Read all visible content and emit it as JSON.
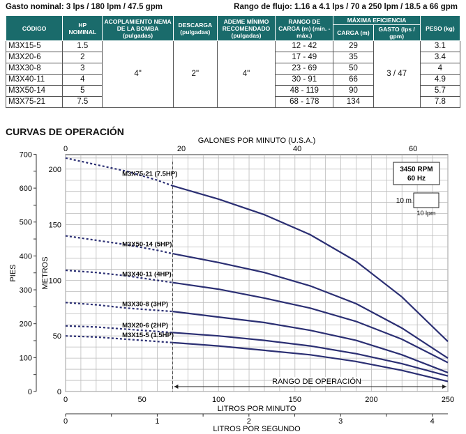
{
  "header": {
    "left": "Gasto nominal: 3 lps / 180 lpm / 47.5 gpm",
    "right": "Rango de flujo: 1.16 a 4.1 lps / 70 a 250 lpm / 18.5 a 66 gpm"
  },
  "table": {
    "headers": {
      "codigo": "CÓDIGO",
      "hp": "HP NOMINAL",
      "acoplamiento": "ACOPLAMIENTO NEMA DE LA BOMBA (pulgadas)",
      "descarga": "DESCARGA (pulgadas)",
      "ademe": "ADEME MÍNIMO RECOMENDADO (pulgadas)",
      "rango": "RANGO DE CARGA (m) (mín. - máx.)",
      "eficiencia": "MÁXIMA EFICIENCIA",
      "carga": "CARGA (m)",
      "gasto": "GASTO (lps / gpm)",
      "peso": "PESO (kg)"
    },
    "shared": {
      "acoplamiento": "4\"",
      "descarga": "2\"",
      "ademe": "4\"",
      "gasto": "3 / 47"
    },
    "rows": [
      {
        "code": "M3X15-5",
        "hp": "1.5",
        "rango": "12 - 42",
        "carga": "29",
        "peso": "3.1"
      },
      {
        "code": "M3X20-6",
        "hp": "2",
        "rango": "17 - 49",
        "carga": "35",
        "peso": "3.4"
      },
      {
        "code": "M3X30-8",
        "hp": "3",
        "rango": "23 - 69",
        "carga": "50",
        "peso": "4"
      },
      {
        "code": "M3X40-11",
        "hp": "4",
        "rango": "30 - 91",
        "carga": "66",
        "peso": "4.9"
      },
      {
        "code": "M3X50-14",
        "hp": "5",
        "rango": "48 - 119",
        "carga": "90",
        "peso": "5.7"
      },
      {
        "code": "M3X75-21",
        "hp": "7.5",
        "rango": "68 - 178",
        "carga": "134",
        "peso": "7.8"
      }
    ]
  },
  "section_title": "CURVAS DE OPERACIÓN",
  "chart_data": {
    "type": "line",
    "x_primary": {
      "label": "LITROS POR MINUTO",
      "range": [
        0,
        250
      ],
      "ticks": [
        0,
        50,
        100,
        150,
        200,
        250
      ]
    },
    "x_top": {
      "label": "GALONES POR MINUTO (U.S.A.)",
      "range": [
        0,
        66
      ],
      "ticks": [
        0,
        20,
        40,
        60
      ]
    },
    "x_bottom": {
      "label": "LITROS POR SEGUNDO",
      "range": [
        0,
        4.17
      ],
      "ticks": [
        0,
        1,
        2,
        3,
        4
      ]
    },
    "y_primary": {
      "label": "METROS",
      "range": [
        0,
        213
      ],
      "ticks": [
        0,
        50,
        100,
        150,
        200
      ]
    },
    "y_left": {
      "label": "PIES",
      "range": [
        0,
        700
      ],
      "ticks": [
        0,
        100,
        200,
        300,
        400,
        500,
        600,
        700
      ]
    },
    "grid": true,
    "legend_box": {
      "line1": "3450 RPM",
      "line2": "60 Hz"
    },
    "scale_box": {
      "vertical": "10 m",
      "horizontal": "10 lpm"
    },
    "operating_range": {
      "label": "RANGO DE OPERACIÓN",
      "x": [
        70,
        250
      ]
    },
    "series": [
      {
        "name": "M3X75-21 (7.5HP)",
        "x": [
          0,
          20,
          40,
          60,
          70,
          100,
          130,
          160,
          190,
          220,
          250
        ],
        "y": [
          210,
          204,
          198,
          190,
          185,
          173,
          159,
          141,
          117,
          85,
          45
        ]
      },
      {
        "name": "M3X50-14 (5HP)",
        "x": [
          0,
          20,
          40,
          60,
          70,
          100,
          130,
          160,
          190,
          220,
          250
        ],
        "y": [
          140,
          136,
          132,
          127,
          124,
          116,
          107,
          95,
          79,
          57,
          30
        ]
      },
      {
        "name": "M3X40-11 (4HP)",
        "x": [
          0,
          20,
          40,
          60,
          70,
          100,
          130,
          160,
          190,
          220,
          250
        ],
        "y": [
          109,
          107,
          104,
          100,
          98,
          92,
          84,
          75,
          63,
          47,
          26
        ]
      },
      {
        "name": "M3X30-8 (3HP)",
        "x": [
          0,
          20,
          40,
          60,
          70,
          100,
          130,
          160,
          190,
          220,
          250
        ],
        "y": [
          80,
          78,
          75,
          73,
          72,
          67,
          62,
          55,
          46,
          33,
          17
        ]
      },
      {
        "name": "M3X20-6 (2HP)",
        "x": [
          0,
          20,
          40,
          60,
          70,
          100,
          130,
          160,
          190,
          220,
          250
        ],
        "y": [
          59,
          58,
          56,
          54,
          53,
          50,
          46,
          41,
          34,
          25,
          14
        ]
      },
      {
        "name": "M3X15-5 (1.5HP)",
        "x": [
          0,
          20,
          40,
          60,
          70,
          100,
          130,
          160,
          190,
          220,
          250
        ],
        "y": [
          50,
          49,
          47,
          45,
          44,
          41,
          37,
          33,
          27,
          19,
          9
        ]
      }
    ]
  }
}
